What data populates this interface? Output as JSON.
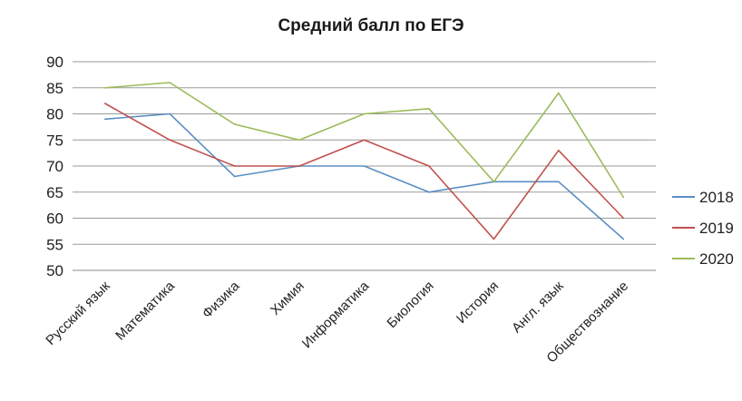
{
  "chart_data": {
    "type": "line",
    "title": "Средний балл по ЕГЭ",
    "xlabel": "",
    "ylabel": "",
    "ylim": [
      50,
      90
    ],
    "y_ticks": [
      50,
      55,
      60,
      65,
      70,
      75,
      80,
      85,
      90
    ],
    "grid": true,
    "legend_position": "right",
    "categories": [
      "Русский язык",
      "Математика",
      "Физика",
      "Химия",
      "Информатика",
      "Биология",
      "История",
      "Англ. язык",
      "Обществознание"
    ],
    "series": [
      {
        "name": "2018",
        "color": "#5b8ec4",
        "values": [
          79,
          80,
          68,
          70,
          70,
          65,
          67,
          67,
          56
        ]
      },
      {
        "name": "2019",
        "color": "#c0504d",
        "values": [
          82,
          75,
          70,
          70,
          75,
          70,
          56,
          73,
          60
        ]
      },
      {
        "name": "2020",
        "color": "#9bbb59",
        "values": [
          85,
          86,
          78,
          75,
          80,
          81,
          67,
          84,
          64
        ]
      }
    ]
  }
}
